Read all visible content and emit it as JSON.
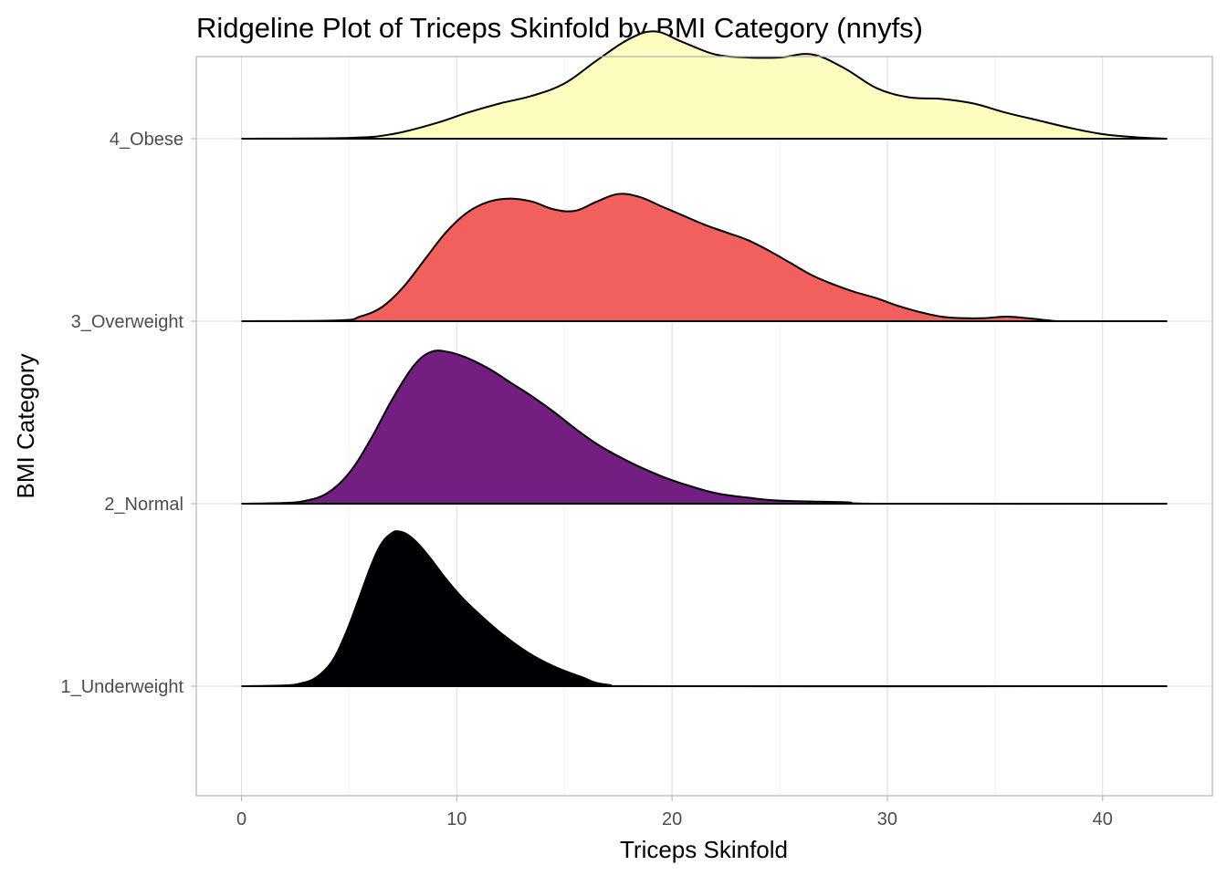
{
  "chart_data": {
    "type": "ridgeline",
    "title": "Ridgeline Plot of Triceps Skinfold by BMI Category (nnyfs)",
    "xlabel": "Triceps Skinfold",
    "ylabel": "BMI Category",
    "xlim": [
      -2.1,
      45.1
    ],
    "x_ticks": [
      0,
      10,
      20,
      30,
      40
    ],
    "x_tick_labels": [
      "0",
      "10",
      "20",
      "30",
      "40"
    ],
    "density_range": [
      0,
      43
    ],
    "grid": true,
    "legend": "none",
    "categories": [
      "1_Underweight",
      "2_Normal",
      "3_Overweight",
      "4_Obese"
    ],
    "series": [
      {
        "category": "1_Underweight",
        "color": "#000004",
        "x": [
          0,
          2,
          2.8,
          3.5,
          4.2,
          4.8,
          5.4,
          6.0,
          6.5,
          7.0,
          7.3,
          7.7,
          8.2,
          8.8,
          9.5,
          10.3,
          11.2,
          12.2,
          13.3,
          14.5,
          15.8,
          17.0,
          20,
          43
        ],
        "density": [
          0,
          0.005,
          0.02,
          0.06,
          0.16,
          0.33,
          0.55,
          0.78,
          0.93,
          1.0,
          1.01,
          0.99,
          0.93,
          0.83,
          0.7,
          0.57,
          0.45,
          0.33,
          0.22,
          0.13,
          0.06,
          0.01,
          0.0,
          0.0
        ]
      },
      {
        "category": "2_Normal",
        "color": "#721F81",
        "x": [
          0,
          2,
          3.0,
          4.0,
          5.0,
          6.0,
          7.0,
          8.0,
          8.8,
          9.6,
          10.5,
          11.5,
          12.5,
          13.5,
          14.5,
          15.5,
          16.5,
          17.5,
          18.5,
          19.5,
          20.5,
          22.0,
          23.5,
          25.0,
          28.0,
          30.0,
          43
        ],
        "density": [
          0,
          0.005,
          0.02,
          0.07,
          0.2,
          0.42,
          0.68,
          0.9,
          0.99,
          0.99,
          0.95,
          0.88,
          0.79,
          0.7,
          0.6,
          0.49,
          0.39,
          0.31,
          0.24,
          0.18,
          0.13,
          0.07,
          0.04,
          0.02,
          0.01,
          0.0,
          0.0
        ]
      },
      {
        "category": "3_Overweight",
        "color": "#F1605D",
        "x": [
          0,
          4.5,
          5.5,
          6.5,
          7.5,
          8.5,
          9.5,
          10.5,
          11.5,
          12.5,
          13.5,
          14.5,
          15.5,
          16.5,
          17.5,
          18.5,
          19.5,
          20.5,
          21.5,
          22.5,
          23.5,
          24.5,
          25.5,
          26.5,
          27.5,
          28.5,
          29.5,
          30.5,
          31.5,
          32.5,
          33.5,
          34.5,
          35.5,
          36.5,
          37.5,
          38.5,
          43
        ],
        "density": [
          0,
          0.005,
          0.03,
          0.09,
          0.22,
          0.4,
          0.58,
          0.71,
          0.78,
          0.8,
          0.78,
          0.73,
          0.72,
          0.78,
          0.83,
          0.81,
          0.75,
          0.69,
          0.63,
          0.58,
          0.53,
          0.46,
          0.38,
          0.3,
          0.24,
          0.19,
          0.15,
          0.1,
          0.06,
          0.03,
          0.02,
          0.02,
          0.03,
          0.02,
          0.005,
          0.0,
          0.0
        ]
      },
      {
        "category": "4_Obese",
        "color": "#FCFDBF",
        "x": [
          0,
          5.0,
          7.0,
          9.0,
          10.5,
          12.0,
          13.5,
          15.0,
          16.5,
          18.0,
          19.2,
          20.5,
          22.0,
          23.5,
          25.0,
          26.5,
          28.0,
          29.5,
          31.0,
          32.5,
          34.0,
          35.5,
          37.0,
          38.5,
          40.0,
          41.5,
          43.0
        ],
        "density": [
          0,
          0.005,
          0.03,
          0.1,
          0.17,
          0.23,
          0.28,
          0.36,
          0.51,
          0.65,
          0.7,
          0.63,
          0.55,
          0.53,
          0.53,
          0.55,
          0.46,
          0.33,
          0.27,
          0.26,
          0.23,
          0.17,
          0.12,
          0.07,
          0.03,
          0.01,
          0.0
        ]
      }
    ]
  }
}
